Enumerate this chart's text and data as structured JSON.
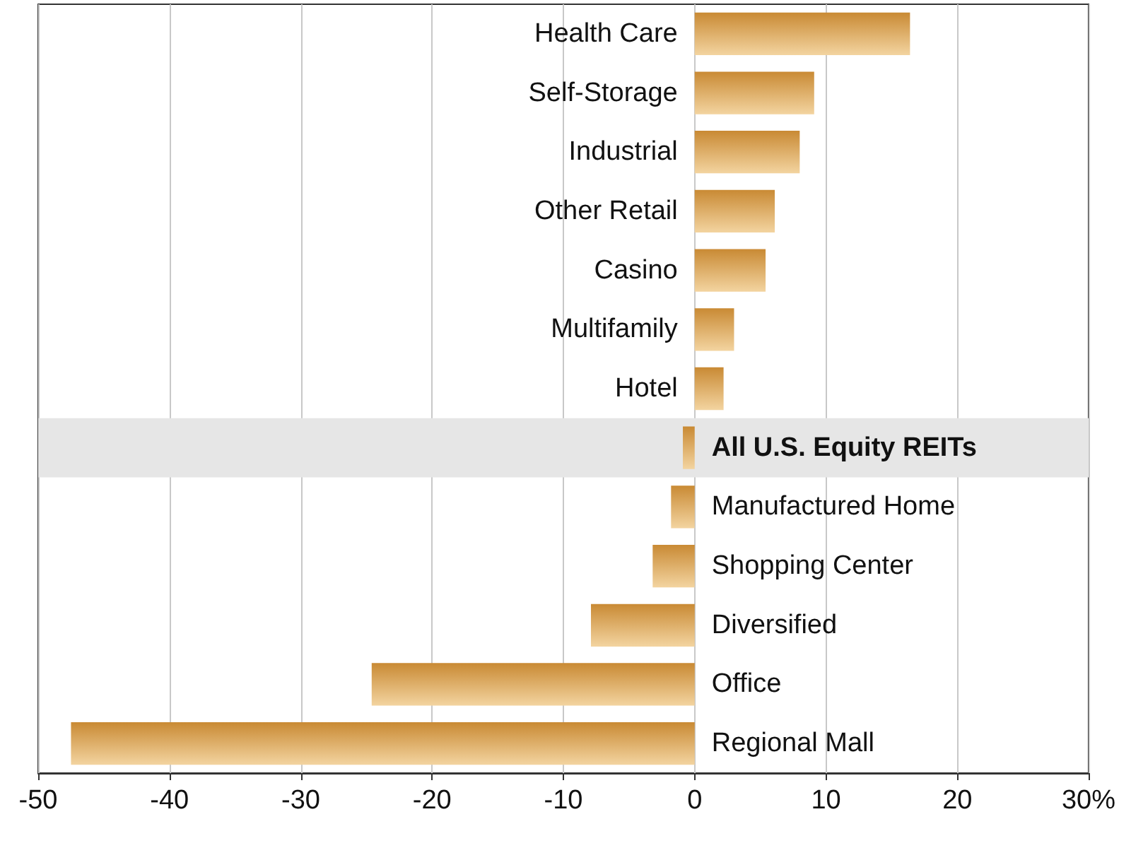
{
  "chart_data": {
    "type": "bar",
    "orientation": "horizontal",
    "categories": [
      "Health Care",
      "Self-Storage",
      "Industrial",
      "Other Retail",
      "Casino",
      "Multifamily",
      "Hotel",
      "All U.S. Equity REITs",
      "Manufactured Home",
      "Shopping Center",
      "Diversified",
      "Office",
      "Regional Mall"
    ],
    "values": [
      16.4,
      9.1,
      8.0,
      6.1,
      5.4,
      3.0,
      2.2,
      -0.9,
      -1.8,
      -3.2,
      -7.9,
      -24.6,
      -47.5
    ],
    "color": "#c98a34",
    "xlim": [
      -50,
      30
    ],
    "xticks": [
      -50,
      -40,
      -30,
      -20,
      -10,
      0,
      10,
      20,
      {
        "value": 30,
        "label": "30%"
      }
    ],
    "grid": "x",
    "bands": [
      {
        "axis": "y",
        "from": "All U.S. Equity REITs",
        "to": "All U.S. Equity REITs",
        "color": "#e6e6e6"
      }
    ]
  }
}
